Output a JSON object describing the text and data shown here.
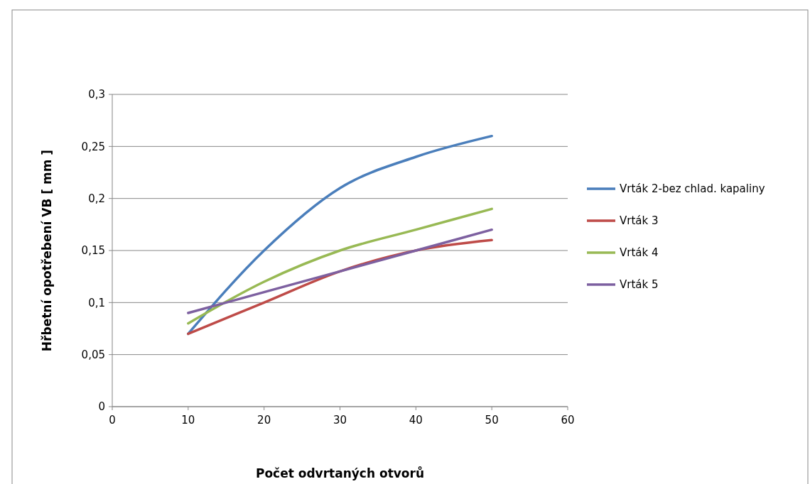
{
  "chart_data": {
    "type": "line",
    "xlabel": "Počet odvrtaných otvorů",
    "ylabel": "Hřbetní opotřebení  VB [ mm ]",
    "x": [
      10,
      20,
      30,
      40,
      50
    ],
    "series": [
      {
        "name": "Vrták 2-bez chlad. kapaliny",
        "color": "#4a7ebb",
        "values": [
          0.07,
          0.15,
          0.21,
          0.24,
          0.26
        ]
      },
      {
        "name": "Vrták 3",
        "color": "#be4b48",
        "values": [
          0.07,
          0.1,
          0.13,
          0.15,
          0.16
        ]
      },
      {
        "name": "Vrták 4",
        "color": "#98b954",
        "values": [
          0.08,
          0.12,
          0.15,
          0.17,
          0.19
        ]
      },
      {
        "name": "Vrták 5",
        "color": "#7d60a0",
        "values": [
          0.09,
          0.11,
          0.13,
          0.15,
          0.17
        ]
      }
    ],
    "xlim": [
      0,
      60
    ],
    "xticks": [
      0,
      10,
      20,
      30,
      40,
      50,
      60
    ],
    "ylim": [
      0,
      0.3
    ],
    "yticks": [
      {
        "value": 0,
        "label": "0"
      },
      {
        "value": 0.05,
        "label": "0,05"
      },
      {
        "value": 0.1,
        "label": "0,1"
      },
      {
        "value": 0.15,
        "label": "0,15"
      },
      {
        "value": 0.2,
        "label": "0,2"
      },
      {
        "value": 0.25,
        "label": "0,25"
      },
      {
        "value": 0.3,
        "label": "0,3"
      }
    ],
    "grid": "y",
    "legend": "right",
    "marker": "none",
    "line_style": "solid"
  }
}
